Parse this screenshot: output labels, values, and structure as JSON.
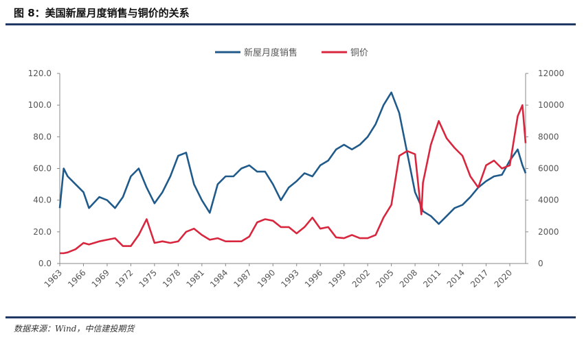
{
  "header": {
    "title": "图 8：美国新屋月度销售与铜价的关系"
  },
  "footer": {
    "source": "数据来源：Wind，中信建投期货"
  },
  "chart_data": {
    "type": "line",
    "title": "美国新屋月度销售与铜价的关系",
    "x_ticks": [
      "1963",
      "1966",
      "1969",
      "1972",
      "1975",
      "1978",
      "1981",
      "1984",
      "1987",
      "1990",
      "1993",
      "1996",
      "1999",
      "2002",
      "2005",
      "2008",
      "2011",
      "2014",
      "2017",
      "2020"
    ],
    "xlim": [
      1963,
      2022
    ],
    "y_left": {
      "ticks": [
        "0.0",
        "20.0",
        "40.0",
        "60.0",
        "80.0",
        "100.0",
        "120.0"
      ],
      "ylim": [
        0,
        120
      ]
    },
    "y_right": {
      "ticks": [
        "0",
        "2000",
        "4000",
        "6000",
        "8000",
        "10000",
        "12000"
      ],
      "ylim": [
        0,
        12000
      ]
    },
    "legend_position": "top-center",
    "x": [
      1963,
      1963.5,
      1964,
      1965,
      1966,
      1966.7,
      1968,
      1969,
      1970,
      1971,
      1972,
      1973,
      1974,
      1975,
      1976,
      1977,
      1978,
      1979,
      1980,
      1981,
      1982,
      1983,
      1984,
      1985,
      1986,
      1987,
      1988,
      1989,
      1990,
      1991,
      1992,
      1993,
      1994,
      1995,
      1996,
      1997,
      1998,
      1999,
      2000,
      2001,
      2002,
      2003,
      2004,
      2005,
      2006,
      2007,
      2008,
      2008.8,
      2009,
      2010,
      2011,
      2012,
      2013,
      2014,
      2015,
      2016,
      2017,
      2018,
      2019,
      2020,
      2021,
      2021.6,
      2022
    ],
    "series": [
      {
        "name": "新屋月度销售",
        "axis": "left",
        "color": "#1f5a8a",
        "values": [
          35,
          60,
          55,
          50,
          45,
          35,
          42,
          40,
          35,
          42,
          55,
          60,
          48,
          38,
          45,
          55,
          68,
          70,
          50,
          40,
          32,
          50,
          55,
          55,
          60,
          62,
          58,
          58,
          50,
          40,
          48,
          52,
          57,
          55,
          62,
          65,
          72,
          75,
          72,
          75,
          80,
          88,
          100,
          108,
          95,
          70,
          45,
          36,
          33,
          30,
          25,
          30,
          35,
          37,
          42,
          48,
          52,
          55,
          56,
          65,
          72,
          62,
          57
        ]
      },
      {
        "name": "铜价",
        "axis": "right",
        "color": "#d7263d",
        "values": [
          650,
          650,
          700,
          900,
          1300,
          1200,
          1400,
          1500,
          1600,
          1100,
          1100,
          1800,
          2800,
          1300,
          1400,
          1300,
          1400,
          2000,
          2200,
          1800,
          1500,
          1600,
          1400,
          1400,
          1400,
          1700,
          2600,
          2800,
          2700,
          2300,
          2300,
          1900,
          2300,
          2900,
          2200,
          2300,
          1650,
          1600,
          1800,
          1600,
          1600,
          1800,
          2900,
          3700,
          6800,
          7100,
          6900,
          3100,
          5100,
          7500,
          9000,
          7900,
          7300,
          6800,
          5500,
          4800,
          6200,
          6500,
          6000,
          6200,
          9300,
          10000,
          7600
        ]
      }
    ]
  }
}
